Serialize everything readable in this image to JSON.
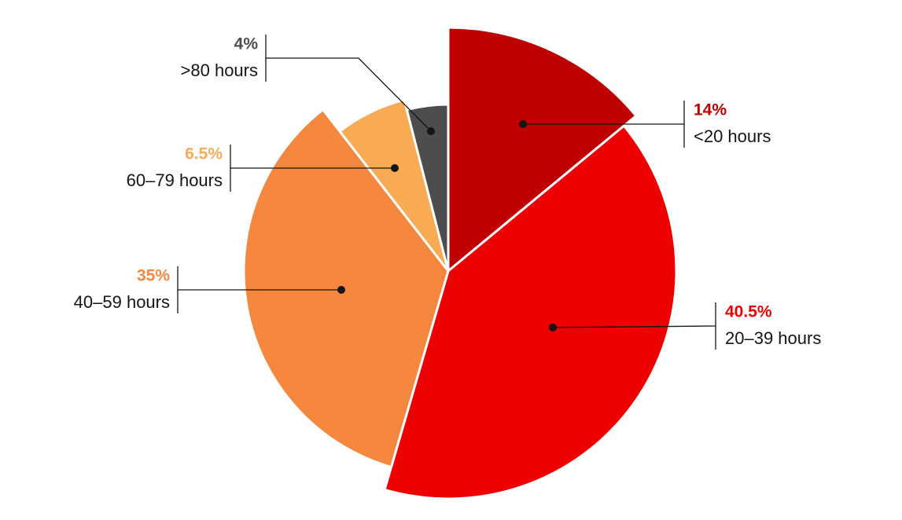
{
  "chart_data": {
    "type": "pie",
    "categories": [
      "<20 hours",
      "20–39 hours",
      "40–59 hours",
      "60–79 hours",
      ">80 hours"
    ],
    "values": [
      14,
      40.5,
      35,
      6.5,
      4
    ],
    "value_labels": [
      "14%",
      "40.5%",
      "35%",
      "6.5%",
      "4%"
    ],
    "colors": [
      "#be0000",
      "#ee0000",
      "#f5873f",
      "#f8ab52",
      "#4d4d4d"
    ]
  }
}
